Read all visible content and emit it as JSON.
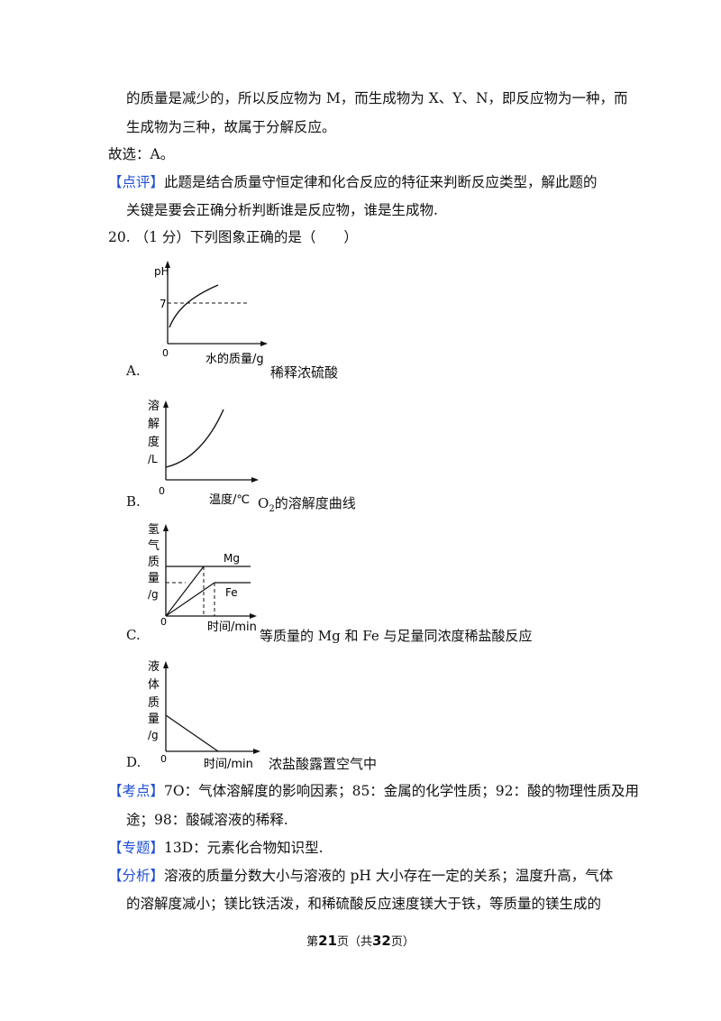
{
  "lines": {
    "l1": "的质量是减少的，所以反应物为 M，而生成物为 X、Y、N，即反应物为一种，而",
    "l2": "生成物为三种，故属于分解反应。",
    "l3": "故选：A。",
    "comment_tag": "【点评】",
    "comment_text": "此题是结合质量守恒定律和化合反应的特征来判断反应类型，解此题的",
    "comment_cont": "关键是要会正确分析判断谁是反应物，谁是生成物.",
    "q20": "20. （1 分）下列图象正确的是（　　）"
  },
  "options": {
    "A": {
      "letter": "A.",
      "caption": "稀释浓硫酸",
      "ylabel": "pH",
      "ytick": "7",
      "origin": "0",
      "xlabel": "水的质量/g"
    },
    "B": {
      "letter": "B.",
      "caption_pre": "O",
      "caption_sub": "2",
      "caption_post": "的溶解度曲线",
      "ylabel": [
        "溶",
        "解",
        "度",
        "/L"
      ],
      "origin": "0",
      "xlabel": "温度/℃"
    },
    "C": {
      "letter": "C.",
      "caption": "等质量的 Mg 和 Fe 与足量同浓度稀盐酸反应",
      "ylabel": [
        "氢",
        "气",
        "质",
        "量",
        "/g"
      ],
      "origin": "0",
      "xlabel": "时间/min",
      "s1": "Mg",
      "s2": "Fe"
    },
    "D": {
      "letter": "D.",
      "caption": "浓盐酸露置空气中",
      "ylabel": [
        "液",
        "体",
        "质",
        "量",
        "/g"
      ],
      "origin": "0",
      "xlabel": "时间/min"
    }
  },
  "analysis": {
    "kd_tag": "【考点】",
    "kd_text": "7O：气体溶解度的影响因素；85：金属的化学性质；92：酸的物理性质及用",
    "kd_cont": "途；98：酸碱溶液的稀释.",
    "zt_tag": "【专题】",
    "zt_text": "13D：元素化合物知识型.",
    "fx_tag": "【分析】",
    "fx_text": "溶液的质量分数大小与溶液的 pH 大小存在一定的关系；温度升高，气体",
    "fx_cont": "的溶解度减小；镁比铁活泼，和稀硫酸反应速度镁大于铁，等质量的镁生成的"
  },
  "footer": {
    "pre": "第",
    "page": "21",
    "mid": "页（共",
    "total": "32",
    "post": "页）"
  }
}
